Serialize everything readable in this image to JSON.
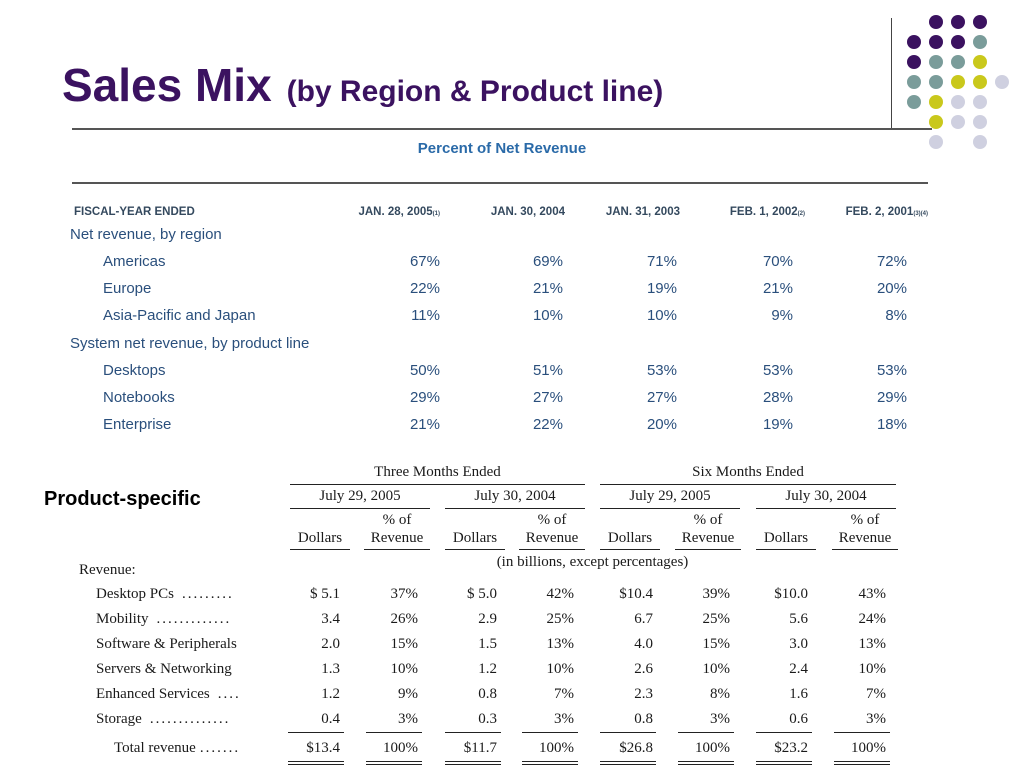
{
  "title": {
    "main": "Sales Mix",
    "sub": "(by Region & Product line)"
  },
  "colors": {
    "title": "#3b1260",
    "caption": "#2a6aa8",
    "body_text": "#2a4f7c",
    "dot_purple": "#3b1260",
    "dot_teal": "#7a9c9a",
    "dot_yellow": "#c9c81c",
    "dot_lavender": "#cfd0e0"
  },
  "region_table": {
    "caption": "Percent of Net Revenue",
    "header_label": "FISCAL-YEAR ENDED",
    "columns": [
      {
        "date": "JAN. 28, 2005",
        "note": "(1)"
      },
      {
        "date": "JAN. 30, 2004",
        "note": ""
      },
      {
        "date": "JAN. 31, 2003",
        "note": ""
      },
      {
        "date": "FEB. 1, 2002",
        "note": "(2)"
      },
      {
        "date": "FEB. 2, 2001",
        "note": "(3)(4)"
      }
    ],
    "group1_title": "Net revenue, by region",
    "group1_rows": [
      {
        "label": "Americas",
        "values": [
          "67%",
          "69%",
          "71%",
          "70%",
          "72%"
        ]
      },
      {
        "label": "Europe",
        "values": [
          "22%",
          "21%",
          "19%",
          "21%",
          "20%"
        ]
      },
      {
        "label": "Asia-Pacific and Japan",
        "values": [
          "11%",
          "10%",
          "10%",
          "9%",
          "8%"
        ]
      }
    ],
    "group2_title": "System net revenue, by product line",
    "group2_rows": [
      {
        "label": "Desktops",
        "values": [
          "50%",
          "51%",
          "53%",
          "53%",
          "53%"
        ]
      },
      {
        "label": "Notebooks",
        "values": [
          "29%",
          "27%",
          "27%",
          "28%",
          "29%"
        ]
      },
      {
        "label": "Enterprise",
        "values": [
          "21%",
          "22%",
          "20%",
          "19%",
          "18%"
        ]
      }
    ]
  },
  "product_label": "Product-specific",
  "product_table": {
    "period_groups": [
      "Three Months Ended",
      "Six Months Ended"
    ],
    "dates": [
      "July 29, 2005",
      "July 30, 2004",
      "July 29, 2005",
      "July 30, 2004"
    ],
    "col_dollars": "Dollars",
    "col_pct_line1": "% of",
    "col_pct_line2": "Revenue",
    "units_note": "(in billions, except percentages)",
    "section_label": "Revenue:",
    "rows": [
      {
        "label": "Desktop PCs",
        "dots": ".........",
        "values": [
          "$  5.1",
          "37%",
          "$  5.0",
          "42%",
          "$10.4",
          "39%",
          "$10.0",
          "43%"
        ]
      },
      {
        "label": "Mobility",
        "dots": ".............",
        "values": [
          "3.4",
          "26%",
          "2.9",
          "25%",
          "6.7",
          "25%",
          "5.6",
          "24%"
        ]
      },
      {
        "label": "Software & Peripherals",
        "dots": "",
        "values": [
          "2.0",
          "15%",
          "1.5",
          "13%",
          "4.0",
          "15%",
          "3.0",
          "13%"
        ]
      },
      {
        "label": "Servers & Networking",
        "dots": "",
        "values": [
          "1.3",
          "10%",
          "1.2",
          "10%",
          "2.6",
          "10%",
          "2.4",
          "10%"
        ]
      },
      {
        "label": "Enhanced Services",
        "dots": "....",
        "values": [
          "1.2",
          "9%",
          "0.8",
          "7%",
          "2.3",
          "8%",
          "1.6",
          "7%"
        ]
      },
      {
        "label": "Storage",
        "dots": "..............",
        "values": [
          "0.4",
          "3%",
          "0.3",
          "3%",
          "0.8",
          "3%",
          "0.6",
          "3%"
        ]
      }
    ],
    "total_row": {
      "label": "Total revenue",
      "dots": ".......",
      "values": [
        "$13.4",
        "100%",
        "$11.7",
        "100%",
        "$26.8",
        "100%",
        "$23.2",
        "100%"
      ]
    }
  }
}
